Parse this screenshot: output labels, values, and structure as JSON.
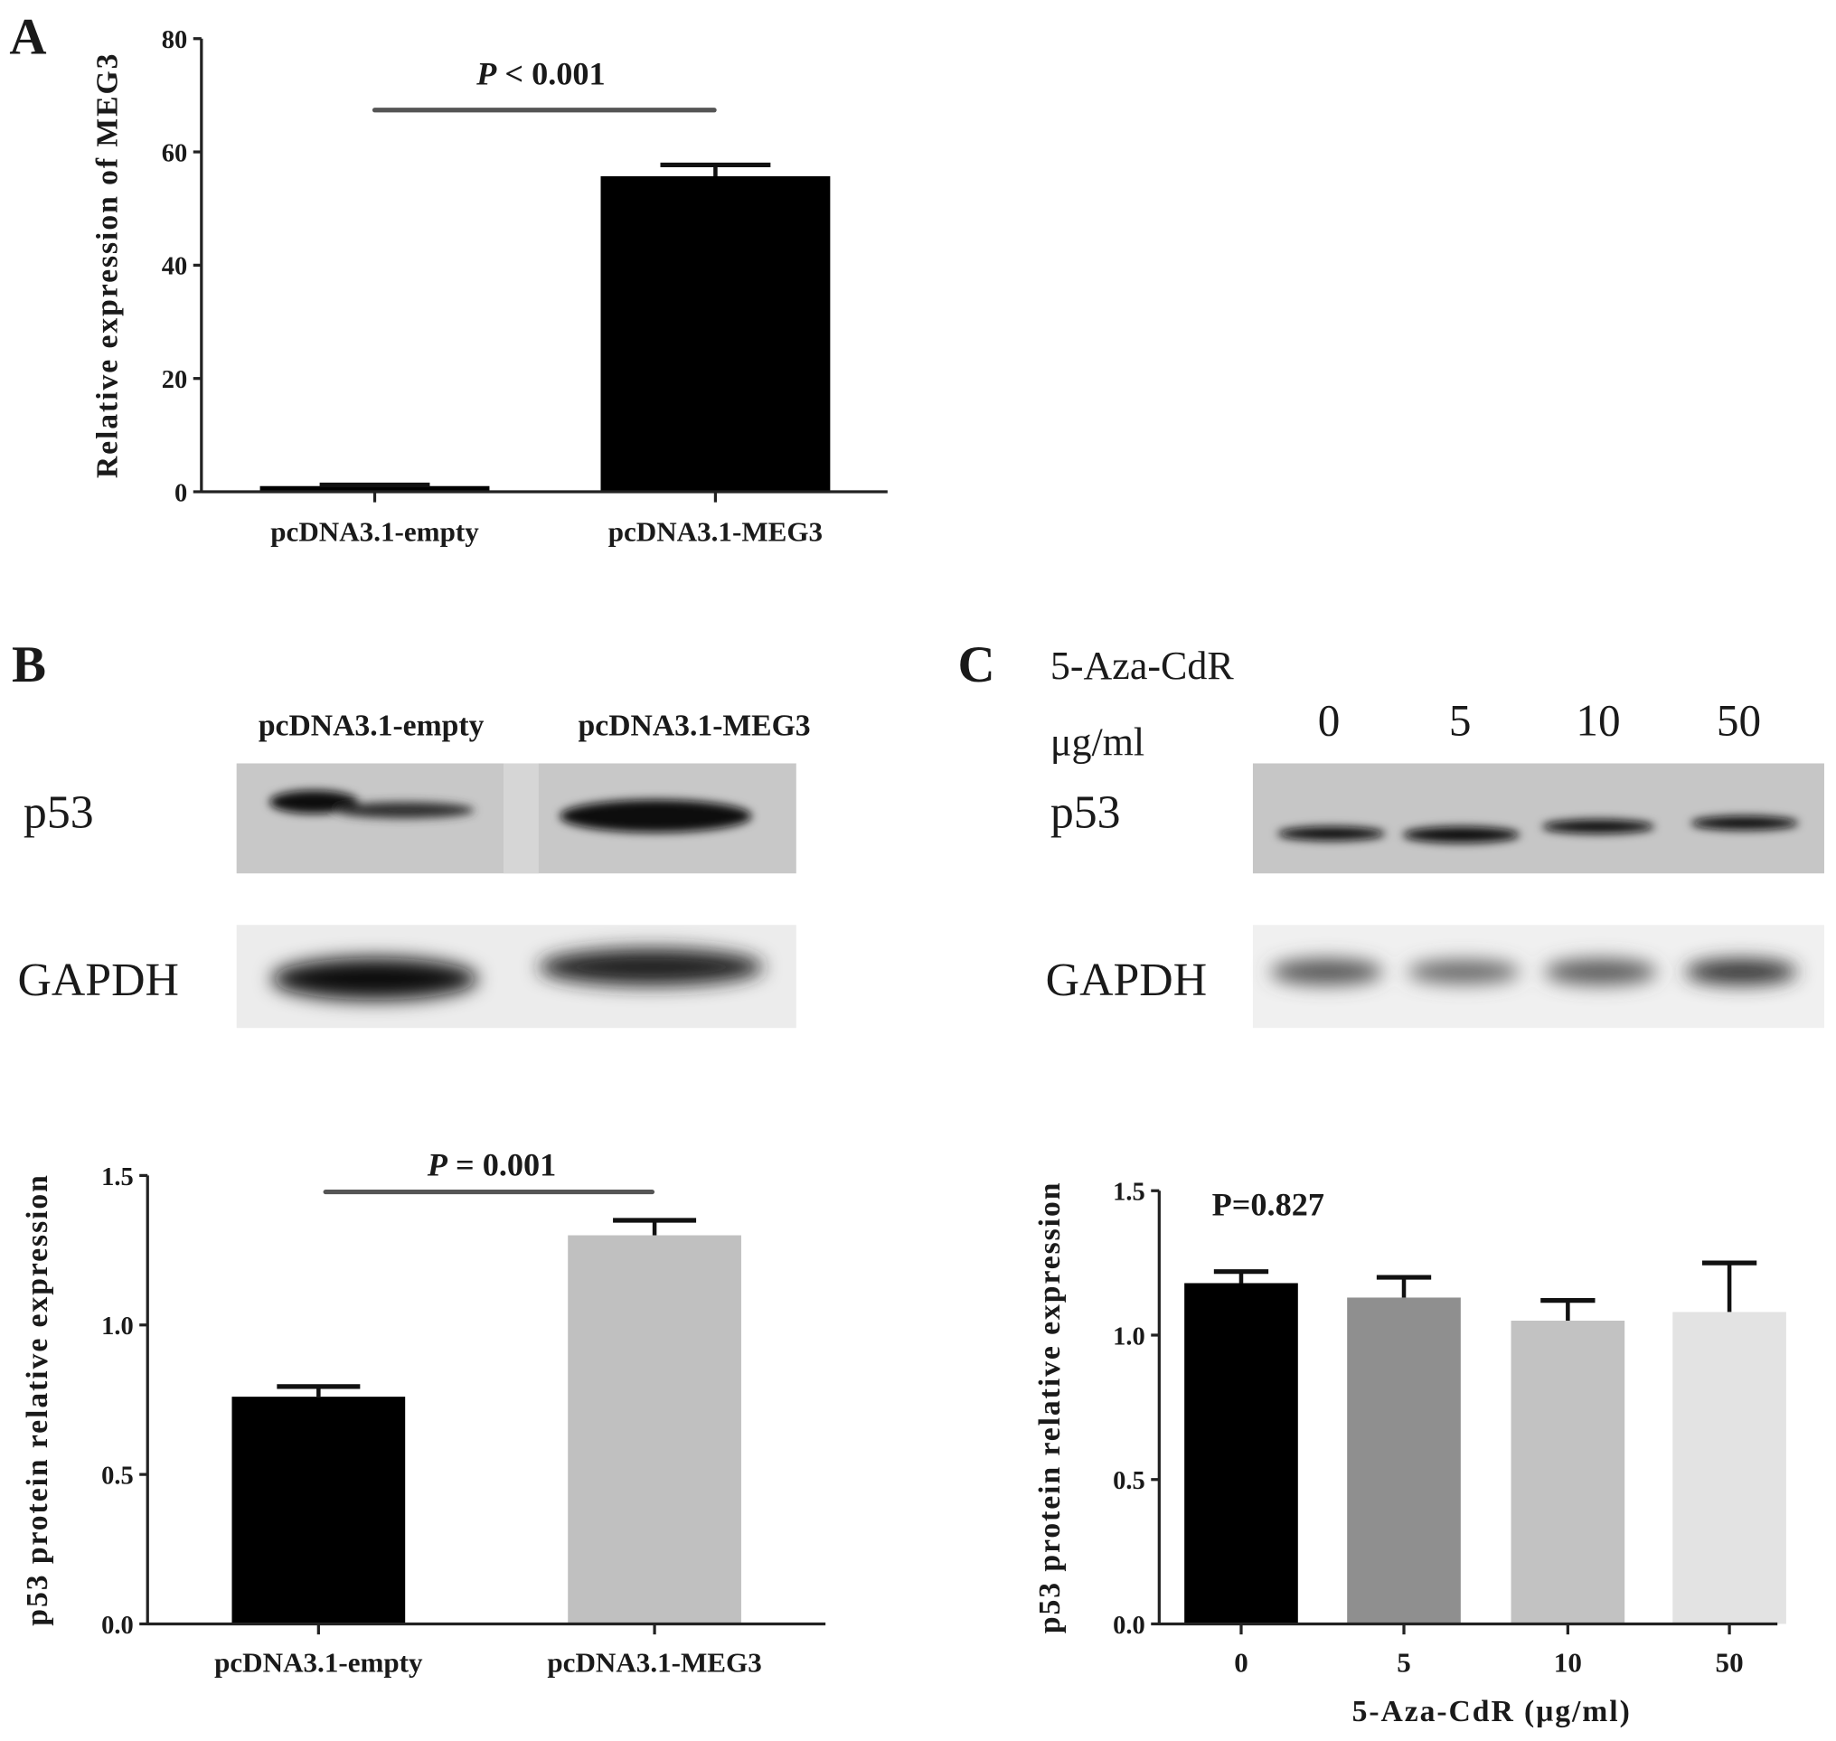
{
  "panels": {
    "a": "A",
    "b": "B",
    "c": "C"
  },
  "blot_b": {
    "lanes": [
      "pcDNA3.1-empty",
      "pcDNA3.1-MEG3"
    ],
    "rows": [
      "p53",
      "GAPDH"
    ]
  },
  "blot_c": {
    "treatment_label": "5-Aza-CdR",
    "unit_label": "μg/ml",
    "lanes": [
      "0",
      "5",
      "10",
      "50"
    ],
    "rows": [
      "p53",
      "GAPDH"
    ]
  },
  "chart_data": [
    {
      "id": "A",
      "type": "bar",
      "categories": [
        "pcDNA3.1-empty",
        "pcDNA3.1-MEG3"
      ],
      "values": [
        1.0,
        55.7
      ],
      "errors": [
        0.2,
        2.0
      ],
      "colors": [
        "#000000",
        "#000000"
      ],
      "ylabel": "Relative expression of MEG3",
      "xlabel": "",
      "ylim": [
        0,
        80
      ],
      "yticks": [
        "0",
        "20",
        "40",
        "60",
        "80"
      ],
      "annotation": {
        "italic": "P",
        "rest": " < 0.001"
      },
      "grid": false
    },
    {
      "id": "B",
      "type": "bar",
      "categories": [
        "pcDNA3.1-empty",
        "pcDNA3.1-MEG3"
      ],
      "values": [
        0.76,
        1.3
      ],
      "errors": [
        0.034,
        0.05
      ],
      "colors": [
        "#000000",
        "#c0c0c0"
      ],
      "ylabel": "p53 protein relative expression",
      "xlabel": "",
      "ylim": [
        0,
        1.5
      ],
      "yticks": [
        "0.0",
        "0.5",
        "1.0",
        "1.5"
      ],
      "annotation": {
        "italic": "P",
        "rest": " = 0.001"
      },
      "grid": false
    },
    {
      "id": "C",
      "type": "bar",
      "categories": [
        "0",
        "5",
        "10",
        "50"
      ],
      "values": [
        1.18,
        1.13,
        1.05,
        1.08
      ],
      "errors": [
        0.04,
        0.07,
        0.07,
        0.17
      ],
      "colors": [
        "#000000",
        "#8f8f8f",
        "#c2c2c2",
        "#e3e3e3"
      ],
      "ylabel": "p53 protein relative expression",
      "xlabel": "5-Aza-CdR (μg/ml)",
      "ylim": [
        0,
        1.5
      ],
      "yticks": [
        "0.0",
        "0.5",
        "1.0",
        "1.5"
      ],
      "annotation": {
        "italic": "",
        "rest": "P=0.827"
      },
      "grid": false
    }
  ]
}
